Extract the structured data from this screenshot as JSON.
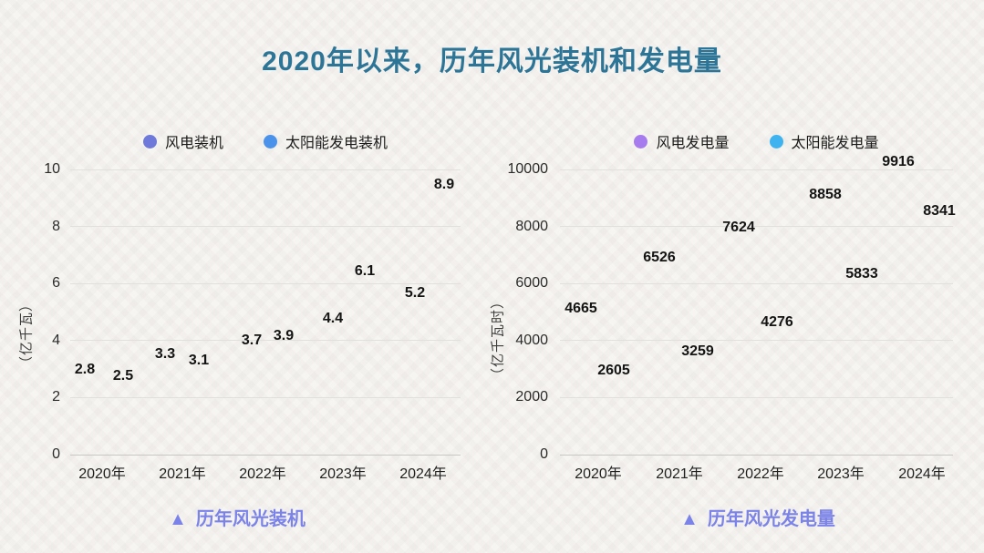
{
  "page": {
    "title": "2020年以来，历年风光装机和发电量",
    "title_color": "#2d7597",
    "caption_color": "#7b83e8",
    "caption_marker": "▲",
    "background_color": "#f7f5f2",
    "gridline_color": "#e2e0dd"
  },
  "chart_data": [
    {
      "type": "scatter",
      "title": "历年风光装机",
      "display": "value-labels-only",
      "categories": [
        "2020年",
        "2021年",
        "2022年",
        "2023年",
        "2024年"
      ],
      "series": [
        {
          "name": "风电装机",
          "color": "#6f79d9",
          "values": [
            2.8,
            3.3,
            3.7,
            4.4,
            5.2
          ],
          "label_offsets": [
            [
              -19,
              -5
            ],
            [
              -19,
              -7
            ],
            [
              -12,
              -9
            ],
            [
              -11,
              -11
            ],
            [
              -9,
              -14
            ]
          ]
        },
        {
          "name": "太阳能发电装机",
          "color": "#4b93ea",
          "values": [
            2.5,
            3.1,
            3.9,
            6.1,
            8.9
          ],
          "label_offsets": [
            [
              23,
              -8
            ],
            [
              18,
              -6
            ],
            [
              23,
              -8
            ],
            [
              24,
              -10
            ],
            [
              23,
              -17
            ]
          ]
        }
      ],
      "xlabel": "",
      "ylabel": "（亿千瓦）",
      "ylim": [
        0,
        10
      ],
      "yticks": [
        0,
        2,
        4,
        6,
        8,
        10
      ],
      "grid": true,
      "legend_position": "top"
    },
    {
      "type": "scatter",
      "title": "历年风光发电量",
      "display": "value-labels-only",
      "categories": [
        "2020年",
        "2021年",
        "2022年",
        "2023年",
        "2024年"
      ],
      "series": [
        {
          "name": "风电发电量",
          "color": "#a67bee",
          "values": [
            4665,
            6526,
            7624,
            8858,
            9916
          ],
          "label_offsets": [
            [
              -19,
              -14
            ],
            [
              -22,
              -12
            ],
            [
              -24,
              -10
            ],
            [
              -17,
              -8
            ],
            [
              -26,
              -11
            ]
          ]
        },
        {
          "name": "太阳能发电量",
          "color": "#3eb3f0",
          "values": [
            2605,
            3259,
            4276,
            5833,
            8341
          ],
          "label_offsets": [
            [
              17,
              -10
            ],
            [
              20,
              -11
            ],
            [
              18,
              -11
            ],
            [
              23,
              -15
            ],
            [
              19,
              -6
            ]
          ]
        }
      ],
      "xlabel": "",
      "ylabel": "（亿千瓦时）",
      "ylim": [
        0,
        10000
      ],
      "yticks": [
        0,
        2000,
        4000,
        6000,
        8000,
        10000
      ],
      "grid": true,
      "legend_position": "top"
    }
  ]
}
